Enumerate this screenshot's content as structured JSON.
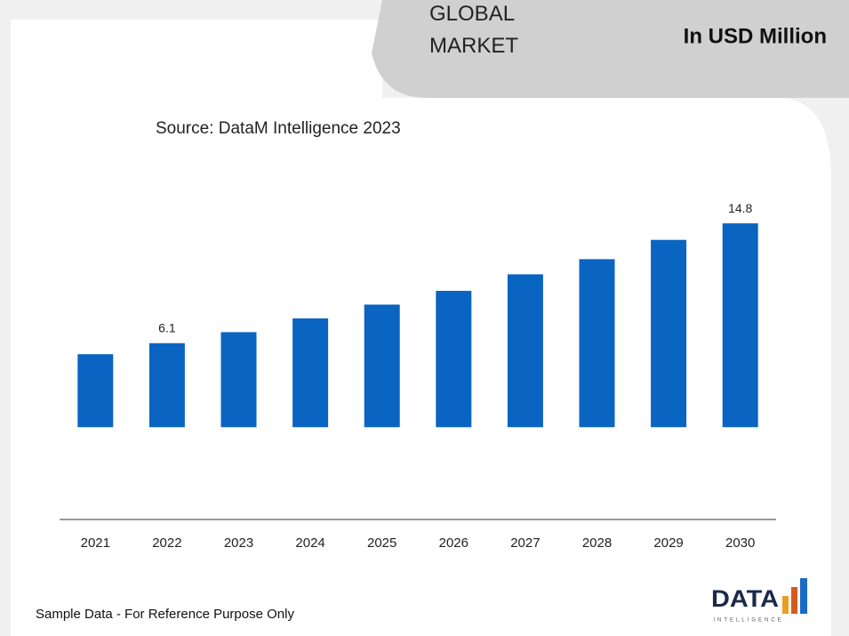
{
  "header": {
    "title": "GLOBAL MARKET",
    "unit": "In USD Million"
  },
  "chart_data": {
    "type": "bar",
    "subtitle": "Source: DataM Intelligence 2023",
    "categories": [
      "2021",
      "2022",
      "2023",
      "2024",
      "2025",
      "2026",
      "2027",
      "2028",
      "2029",
      "2030"
    ],
    "values": [
      5.3,
      6.1,
      6.9,
      7.9,
      8.9,
      9.9,
      11.1,
      12.2,
      13.6,
      14.8
    ],
    "value_labels": [
      null,
      "6.1",
      null,
      null,
      null,
      null,
      null,
      null,
      null,
      "14.8"
    ],
    "color": "#0a64c2",
    "ylim": [
      -6.7,
      18.1
    ]
  },
  "footer": {
    "note": "Sample Data - For Reference Purpose Only",
    "logo": "DATA",
    "logo_sub": "INTELLIGENCE"
  }
}
